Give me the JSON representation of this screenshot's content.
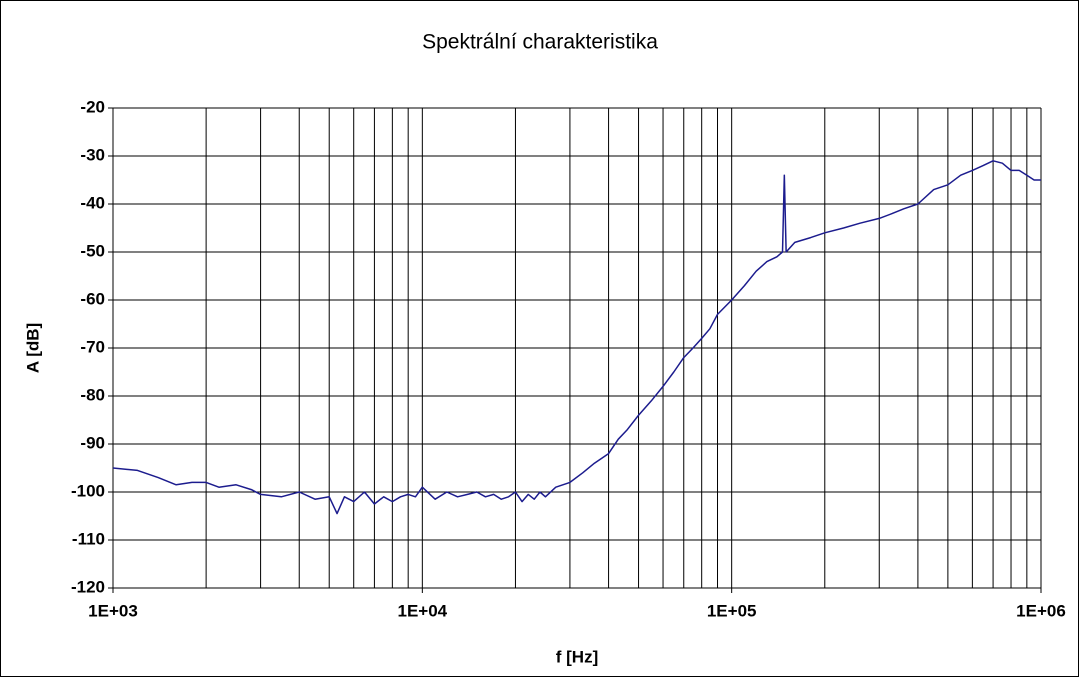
{
  "chart_data": {
    "type": "line",
    "title": "Spektrální charakteristika",
    "x_label": "f [Hz]",
    "y_label": "A [dB]",
    "x_log": true,
    "grid": true,
    "color": "#1c1c8e",
    "xlim": [
      1000,
      1000000
    ],
    "xticks": [
      {
        "value": 1000,
        "label": "1E+03"
      },
      {
        "value": 10000,
        "label": "1E+04"
      },
      {
        "value": 100000,
        "label": "1E+05"
      },
      {
        "value": 1000000,
        "label": "1E+06"
      }
    ],
    "x_minor_gridlines": [
      2000,
      3000,
      4000,
      5000,
      6000,
      7000,
      8000,
      9000,
      20000,
      30000,
      40000,
      50000,
      60000,
      70000,
      80000,
      90000,
      200000,
      300000,
      400000,
      500000,
      600000,
      700000,
      800000,
      900000
    ],
    "ylim": [
      -120,
      -20
    ],
    "yticks": [
      -120,
      -110,
      -100,
      -90,
      -80,
      -70,
      -60,
      -50,
      -40,
      -30,
      -20
    ],
    "x": [
      1000,
      1200,
      1400,
      1600,
      1800,
      2000,
      2200,
      2500,
      2800,
      3000,
      3500,
      4000,
      4500,
      5000,
      5300,
      5600,
      6000,
      6500,
      7000,
      7500,
      8000,
      8500,
      9000,
      9500,
      10000,
      11000,
      12000,
      13000,
      14000,
      15000,
      16000,
      17000,
      18000,
      19000,
      20000,
      21000,
      22000,
      23000,
      24000,
      25000,
      27000,
      30000,
      33000,
      36000,
      40000,
      43000,
      46000,
      50000,
      55000,
      60000,
      65000,
      70000,
      75000,
      80000,
      85000,
      90000,
      100000,
      110000,
      120000,
      130000,
      140000,
      146000,
      148000,
      150000,
      160000,
      180000,
      200000,
      230000,
      260000,
      300000,
      330000,
      360000,
      400000,
      450000,
      500000,
      550000,
      600000,
      650000,
      700000,
      750000,
      800000,
      850000,
      900000,
      950000,
      1000000
    ],
    "values": [
      -95,
      -95.5,
      -97,
      -98.5,
      -98,
      -98,
      -99,
      -98.5,
      -99.5,
      -100.5,
      -101,
      -100,
      -101.5,
      -101,
      -104.5,
      -101,
      -102,
      -100,
      -102.5,
      -101,
      -102,
      -101,
      -100.5,
      -101,
      -99,
      -101.5,
      -100,
      -101,
      -100.5,
      -100,
      -101,
      -100.5,
      -101.5,
      -101,
      -100,
      -102,
      -100.5,
      -101.5,
      -100,
      -101,
      -99,
      -98,
      -96,
      -94,
      -92,
      -89,
      -87,
      -84,
      -81,
      -78,
      -75,
      -72,
      -70,
      -68,
      -66,
      -63,
      -60,
      -57,
      -54,
      -52,
      -51,
      -50,
      -34,
      -50,
      -48,
      -47,
      -46,
      -45,
      -44,
      -43,
      -42,
      -41,
      -40,
      -37,
      -36,
      -34,
      -33,
      -32,
      -31,
      -31.5,
      -33,
      -33,
      -34,
      -35,
      -35
    ]
  }
}
